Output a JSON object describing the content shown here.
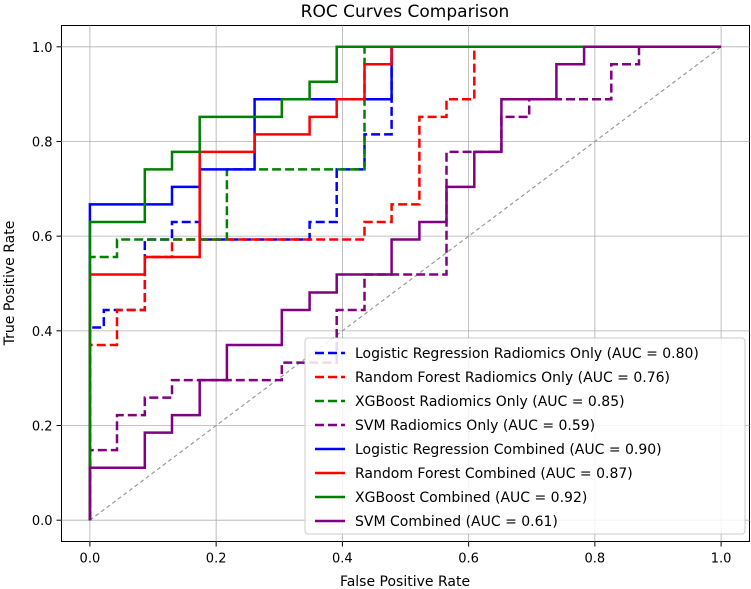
{
  "chart_data": {
    "type": "line",
    "title": "ROC Curves Comparison",
    "xlabel": "False Positive Rate",
    "ylabel": "True Positive Rate",
    "xlim": [
      -0.045,
      1.045
    ],
    "ylim": [
      -0.045,
      1.045
    ],
    "grid": true,
    "legend_position": "lower-right",
    "xticks": [
      "0.0",
      "0.2",
      "0.4",
      "0.6",
      "0.8",
      "1.0"
    ],
    "yticks": [
      "0.0",
      "0.2",
      "0.4",
      "0.6",
      "0.8",
      "1.0"
    ],
    "chance_line": {
      "x": [
        0,
        1
      ],
      "y": [
        0,
        1
      ],
      "color": "#999999",
      "style": "dashed"
    },
    "series": [
      {
        "name": "Logistic Regression Radiomics Only (AUC = 0.80)",
        "color": "#0000ff",
        "style": "dashed",
        "x": [
          0,
          0,
          0.022,
          0.022,
          0.087,
          0.087,
          0.13,
          0.13,
          0.174,
          0.174,
          0.348,
          0.348,
          0.391,
          0.391,
          0.435,
          0.435,
          0.478,
          0.478
        ],
        "y": [
          0,
          0.407,
          0.407,
          0.444,
          0.444,
          0.593,
          0.593,
          0.63,
          0.63,
          0.593,
          0.593,
          0.63,
          0.63,
          0.741,
          0.741,
          0.815,
          0.815,
          1.0
        ]
      },
      {
        "name": "Random Forest Radiomics Only (AUC = 0.76)",
        "color": "#ff0000",
        "style": "dashed",
        "x": [
          0,
          0,
          0.043,
          0.043,
          0.087,
          0.087,
          0.13,
          0.13,
          0.435,
          0.435,
          0.478,
          0.478,
          0.522,
          0.522,
          0.565,
          0.565,
          0.609,
          0.609,
          0.609,
          1.0
        ],
        "y": [
          0,
          0.37,
          0.37,
          0.444,
          0.444,
          0.556,
          0.556,
          0.593,
          0.593,
          0.63,
          0.63,
          0.667,
          0.667,
          0.852,
          0.852,
          0.889,
          0.889,
          0.963,
          1.0,
          1.0
        ]
      },
      {
        "name": "XGBoost Radiomics Only (AUC = 0.85)",
        "color": "#008000",
        "style": "dashed",
        "x": [
          0,
          0,
          0.043,
          0.043,
          0.217,
          0.217,
          0.435,
          0.435
        ],
        "y": [
          0,
          0.556,
          0.556,
          0.593,
          0.593,
          0.741,
          0.741,
          1.0
        ]
      },
      {
        "name": "SVM Radiomics Only (AUC = 0.59)",
        "color": "#800080",
        "style": "dashed",
        "x": [
          0,
          0,
          0.043,
          0.043,
          0.087,
          0.087,
          0.13,
          0.13,
          0.304,
          0.304,
          0.391,
          0.391,
          0.435,
          0.435,
          0.565,
          0.565,
          0.652,
          0.652,
          0.696,
          0.696,
          0.739,
          0.739,
          0.826,
          0.826,
          0.87,
          0.87,
          1.0
        ],
        "y": [
          0,
          0.148,
          0.148,
          0.222,
          0.222,
          0.259,
          0.259,
          0.296,
          0.296,
          0.333,
          0.333,
          0.444,
          0.444,
          0.519,
          0.519,
          0.778,
          0.778,
          0.852,
          0.852,
          0.889,
          0.889,
          0.889,
          0.889,
          0.963,
          0.963,
          1.0,
          1.0
        ]
      },
      {
        "name": "Logistic Regression Combined (AUC = 0.90)",
        "color": "#0000ff",
        "style": "solid",
        "x": [
          0,
          0,
          0.13,
          0.13,
          0.174,
          0.174,
          0.261,
          0.261,
          0.478,
          0.478
        ],
        "y": [
          0,
          0.667,
          0.667,
          0.704,
          0.704,
          0.741,
          0.741,
          0.889,
          0.889,
          1.0
        ]
      },
      {
        "name": "Random Forest Combined (AUC = 0.87)",
        "color": "#ff0000",
        "style": "solid",
        "x": [
          0,
          0,
          0.087,
          0.087,
          0.174,
          0.174,
          0.261,
          0.261,
          0.348,
          0.348,
          0.391,
          0.391,
          0.435,
          0.435,
          0.478,
          0.478
        ],
        "y": [
          0,
          0.519,
          0.519,
          0.556,
          0.556,
          0.778,
          0.778,
          0.815,
          0.815,
          0.852,
          0.852,
          0.889,
          0.889,
          0.963,
          0.963,
          1.0
        ]
      },
      {
        "name": "XGBoost Combined (AUC = 0.92)",
        "color": "#008000",
        "style": "solid",
        "x": [
          0,
          0,
          0.043,
          0.043,
          0.087,
          0.087,
          0.13,
          0.13,
          0.174,
          0.174,
          0.304,
          0.304,
          0.348,
          0.348,
          0.391,
          0.391,
          1.0
        ],
        "y": [
          0,
          0.63,
          0.63,
          0.63,
          0.63,
          0.741,
          0.741,
          0.778,
          0.778,
          0.852,
          0.852,
          0.889,
          0.889,
          0.926,
          0.926,
          1.0,
          1.0
        ]
      },
      {
        "name": "SVM Combined (AUC = 0.61)",
        "color": "#800080",
        "style": "solid",
        "x": [
          0,
          0,
          0.087,
          0.087,
          0.13,
          0.13,
          0.174,
          0.174,
          0.217,
          0.217,
          0.304,
          0.304,
          0.348,
          0.348,
          0.391,
          0.391,
          0.478,
          0.478,
          0.522,
          0.522,
          0.565,
          0.565,
          0.609,
          0.609,
          0.652,
          0.652,
          0.739,
          0.739,
          0.783,
          0.783,
          1.0
        ],
        "y": [
          0,
          0.111,
          0.111,
          0.185,
          0.185,
          0.222,
          0.222,
          0.296,
          0.296,
          0.37,
          0.37,
          0.444,
          0.444,
          0.481,
          0.481,
          0.519,
          0.519,
          0.593,
          0.593,
          0.63,
          0.63,
          0.704,
          0.704,
          0.778,
          0.778,
          0.889,
          0.889,
          0.963,
          0.963,
          1.0,
          1.0
        ]
      }
    ]
  }
}
